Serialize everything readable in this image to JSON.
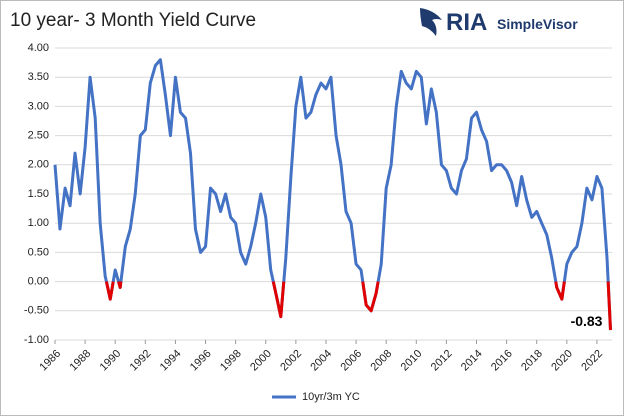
{
  "logo": {
    "brand": "RIA",
    "sub": "SimpleVisor"
  },
  "chart_data": {
    "type": "line",
    "title": "10 year- 3 Month Yield Curve",
    "x": [
      1986,
      1986.33,
      1986.67,
      1987,
      1987.33,
      1987.67,
      1988,
      1988.33,
      1988.67,
      1989,
      1989.33,
      1989.67,
      1990,
      1990.33,
      1990.67,
      1991,
      1991.33,
      1991.67,
      1992,
      1992.33,
      1992.67,
      1993,
      1993.33,
      1993.67,
      1994,
      1994.33,
      1994.67,
      1995,
      1995.33,
      1995.67,
      1996,
      1996.33,
      1996.67,
      1997,
      1997.33,
      1997.67,
      1998,
      1998.33,
      1998.67,
      1999,
      1999.33,
      1999.67,
      2000,
      2000.33,
      2000.67,
      2001,
      2001.33,
      2001.67,
      2002,
      2002.33,
      2002.67,
      2003,
      2003.33,
      2003.67,
      2004,
      2004.33,
      2004.67,
      2005,
      2005.33,
      2005.67,
      2006,
      2006.33,
      2006.67,
      2007,
      2007.33,
      2007.67,
      2008,
      2008.33,
      2008.67,
      2009,
      2009.33,
      2009.67,
      2010,
      2010.33,
      2010.67,
      2011,
      2011.33,
      2011.67,
      2012,
      2012.33,
      2012.67,
      2013,
      2013.33,
      2013.67,
      2014,
      2014.33,
      2014.67,
      2015,
      2015.33,
      2015.67,
      2016,
      2016.33,
      2016.67,
      2017,
      2017.33,
      2017.67,
      2018,
      2018.33,
      2018.67,
      2019,
      2019.33,
      2019.67,
      2020,
      2020.33,
      2020.67,
      2021,
      2021.33,
      2021.67,
      2022,
      2022.33,
      2022.67,
      2022.9
    ],
    "series": [
      {
        "name": "10yr/3m YC",
        "color": "#4472c4",
        "negative_color": "#e00000",
        "values": [
          2.0,
          0.9,
          1.6,
          1.3,
          2.2,
          1.5,
          2.3,
          3.5,
          2.8,
          1.0,
          0.1,
          -0.3,
          0.2,
          -0.1,
          0.6,
          0.9,
          1.5,
          2.5,
          2.6,
          3.4,
          3.7,
          3.8,
          3.2,
          2.5,
          3.5,
          2.9,
          2.8,
          2.2,
          0.9,
          0.5,
          0.6,
          1.6,
          1.5,
          1.2,
          1.5,
          1.1,
          1.0,
          0.5,
          0.3,
          0.6,
          1.0,
          1.5,
          1.1,
          0.2,
          -0.2,
          -0.6,
          0.4,
          1.8,
          3.0,
          3.5,
          2.8,
          2.9,
          3.2,
          3.4,
          3.3,
          3.5,
          2.5,
          2.0,
          1.2,
          1.0,
          0.3,
          0.2,
          -0.4,
          -0.5,
          -0.2,
          0.3,
          1.6,
          2.0,
          3.0,
          3.6,
          3.4,
          3.3,
          3.6,
          3.5,
          2.7,
          3.3,
          2.9,
          2.0,
          1.9,
          1.6,
          1.5,
          1.9,
          2.1,
          2.8,
          2.9,
          2.6,
          2.4,
          1.9,
          2.0,
          2.0,
          1.9,
          1.7,
          1.3,
          1.8,
          1.4,
          1.1,
          1.2,
          1.0,
          0.8,
          0.4,
          -0.1,
          -0.3,
          0.3,
          0.5,
          0.6,
          1.0,
          1.6,
          1.4,
          1.8,
          1.6,
          0.4,
          -0.83
        ]
      }
    ],
    "xlim": [
      1986,
      2023
    ],
    "xticks": [
      1986,
      1988,
      1990,
      1992,
      1994,
      1996,
      1998,
      2000,
      2002,
      2004,
      2006,
      2008,
      2010,
      2012,
      2014,
      2016,
      2018,
      2020,
      2022
    ],
    "ylim": [
      -1,
      4
    ],
    "yticks": [
      {
        "value": -1,
        "label": "-1.00"
      },
      {
        "value": -0.5,
        "label": "-0.50"
      },
      {
        "value": 0,
        "label": "0.00"
      },
      {
        "value": 0.5,
        "label": "0.50"
      },
      {
        "value": 1,
        "label": "1.00"
      },
      {
        "value": 1.5,
        "label": "1.50"
      },
      {
        "value": 2,
        "label": "2.00"
      },
      {
        "value": 2.5,
        "label": "2.50"
      },
      {
        "value": 3,
        "label": "3.00"
      },
      {
        "value": 3.5,
        "label": "3.50"
      },
      {
        "value": 4,
        "label": "4.00"
      }
    ],
    "grid": true,
    "legend": "bottom"
  }
}
